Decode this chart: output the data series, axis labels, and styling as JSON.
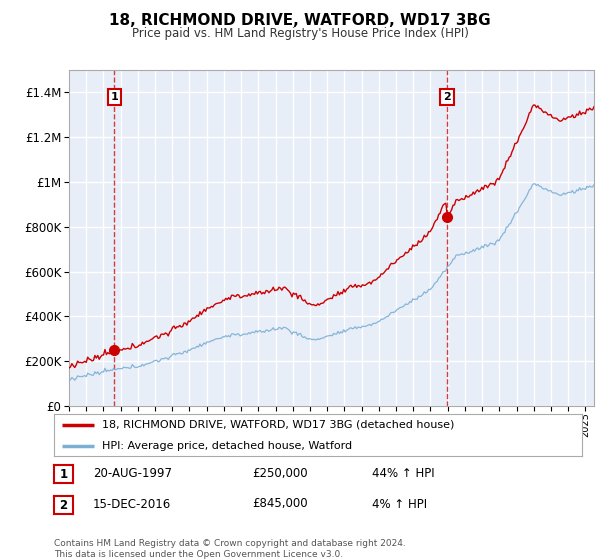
{
  "title": "18, RICHMOND DRIVE, WATFORD, WD17 3BG",
  "subtitle": "Price paid vs. HM Land Registry's House Price Index (HPI)",
  "legend_line1": "18, RICHMOND DRIVE, WATFORD, WD17 3BG (detached house)",
  "legend_line2": "HPI: Average price, detached house, Watford",
  "transaction1_label": "1",
  "transaction1_date": "20-AUG-1997",
  "transaction1_price": "£250,000",
  "transaction1_hpi": "44% ↑ HPI",
  "transaction2_label": "2",
  "transaction2_date": "15-DEC-2016",
  "transaction2_price": "£845,000",
  "transaction2_hpi": "4% ↑ HPI",
  "footer": "Contains HM Land Registry data © Crown copyright and database right 2024.\nThis data is licensed under the Open Government Licence v3.0.",
  "property_color": "#cc0000",
  "hpi_color": "#7bafd4",
  "plot_bg_color": "#e8eef8",
  "grid_color": "#ffffff",
  "ylim_max": 1500000,
  "xlim_start": 1995.0,
  "xlim_end": 2025.5,
  "transaction1_year": 1997.63,
  "transaction1_value": 250000,
  "transaction2_year": 2016.96,
  "transaction2_value": 845000,
  "yticks": [
    0,
    200000,
    400000,
    600000,
    800000,
    1000000,
    1200000,
    1400000
  ],
  "ytick_labels": [
    "£0",
    "£200K",
    "£400K",
    "£600K",
    "£800K",
    "£1M",
    "£1.2M",
    "£1.4M"
  ]
}
